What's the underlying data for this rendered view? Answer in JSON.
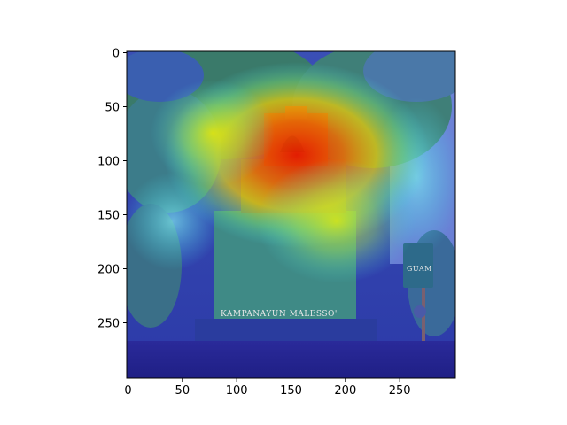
{
  "image": {
    "description_icon": "heatmap-overlay-photo",
    "monument_text": "KAMPANAYUN MALESSO'",
    "road_sign_text": "GUAM"
  },
  "axes": {
    "x_ticks": [
      "0",
      "50",
      "100",
      "150",
      "200",
      "250"
    ],
    "y_ticks": [
      "0",
      "50",
      "100",
      "150",
      "200",
      "250"
    ],
    "x_range": [
      0,
      300
    ],
    "y_range": [
      0,
      300
    ],
    "y_inverted": true
  },
  "colors": {
    "heat_hot": "#e61b00",
    "heat_warm": "#f5a000",
    "heat_mid": "#f4f400",
    "heat_cool": "#3fd6e6",
    "heat_cold": "#2a2cbd"
  }
}
